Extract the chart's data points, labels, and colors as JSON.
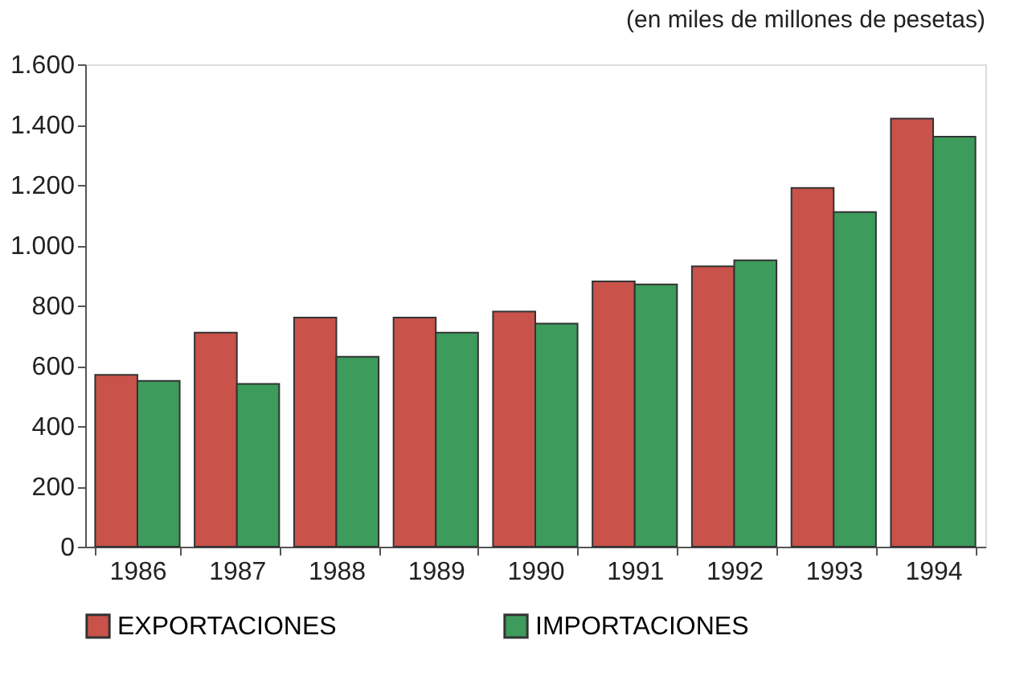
{
  "chart_data": {
    "type": "bar",
    "annotations": [
      "(en miles de millones de pesetas)"
    ],
    "categories": [
      "1986",
      "1987",
      "1988",
      "1989",
      "1990",
      "1991",
      "1992",
      "1993",
      "1994"
    ],
    "series": [
      {
        "name": "EXPORTACIONES",
        "color": "#c9524a",
        "values": [
          570,
          710,
          760,
          760,
          780,
          880,
          930,
          1190,
          1420
        ]
      },
      {
        "name": "IMPORTACIONES",
        "color": "#3d9b5c",
        "values": [
          550,
          540,
          630,
          710,
          740,
          870,
          950,
          1110,
          1360
        ]
      }
    ],
    "ylim": [
      0,
      1600
    ],
    "yticks": [
      0,
      200,
      400,
      600,
      800,
      {
        "value": 1000,
        "label": "1.000"
      },
      {
        "value": 1200,
        "label": "1.200"
      },
      {
        "value": 1400,
        "label": "1.400"
      },
      {
        "value": 1600,
        "label": "1.600"
      }
    ],
    "grid": false,
    "legend": "bottom"
  }
}
